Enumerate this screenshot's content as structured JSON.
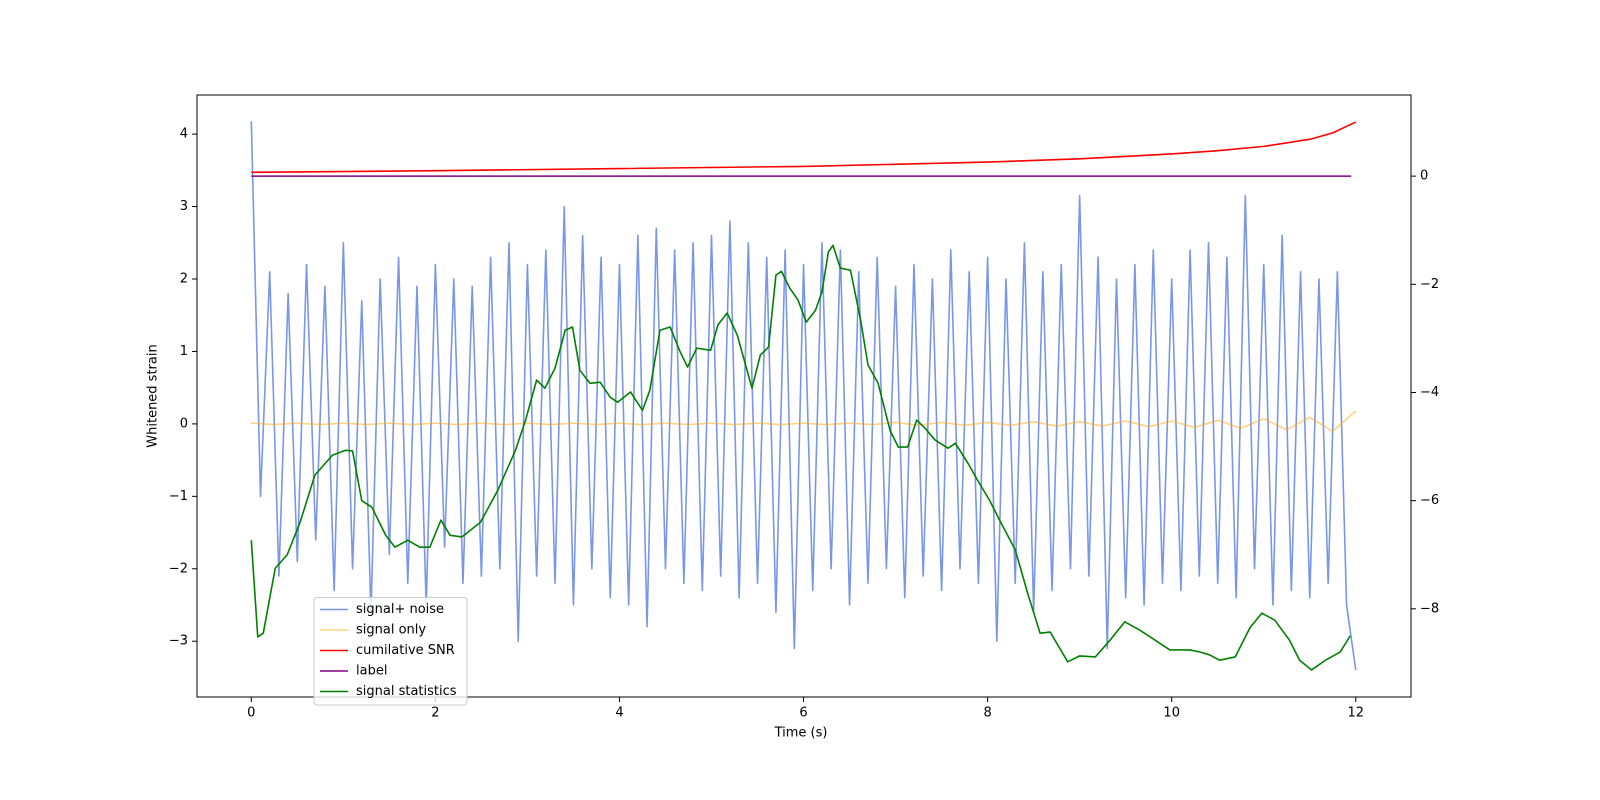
{
  "chart_data": {
    "type": "line",
    "xlabel": "Time (s)",
    "ylabel": "Whitened strain",
    "xlim": [
      -0.59,
      12.6
    ],
    "ylim": [
      -3.77,
      4.54
    ],
    "y2lim": [
      -9.63,
      1.5
    ],
    "xticks": [
      0,
      2,
      4,
      6,
      8,
      10,
      12
    ],
    "yticks": [
      {
        "value": -3,
        "label": "−3"
      },
      {
        "value": -2,
        "label": "−2"
      },
      {
        "value": -1,
        "label": "−1"
      },
      0,
      1,
      2,
      3,
      4
    ],
    "y2ticks": [
      {
        "value": -8,
        "label": "−8"
      },
      {
        "value": -6,
        "label": "−6"
      },
      {
        "value": -4,
        "label": "−4"
      },
      {
        "value": -2,
        "label": "−2"
      },
      0
    ],
    "legend": "lower left",
    "series": [
      {
        "name": "signal+ noise",
        "color": "#4169e1",
        "alpha": 0.7,
        "x": [
          0,
          0.1,
          0.2,
          0.3,
          0.4,
          0.5,
          0.6,
          0.7,
          0.8,
          0.9,
          1,
          1.1,
          1.2,
          1.3,
          1.4,
          1.5,
          1.6,
          1.7,
          1.8,
          1.9,
          2,
          2.1,
          2.2,
          2.3,
          2.4,
          2.5,
          2.6,
          2.7,
          2.8,
          2.9,
          3,
          3.1,
          3.2,
          3.3,
          3.4,
          3.5,
          3.6,
          3.7,
          3.8,
          3.9,
          4,
          4.1,
          4.2,
          4.3,
          4.4,
          4.5,
          4.6,
          4.7,
          4.8,
          4.9,
          5,
          5.1,
          5.2,
          5.3,
          5.4,
          5.5,
          5.6,
          5.7,
          5.8,
          5.9,
          6,
          6.1,
          6.2,
          6.3,
          6.4,
          6.5,
          6.6,
          6.7,
          6.8,
          6.9,
          7,
          7.1,
          7.2,
          7.3,
          7.4,
          7.5,
          7.6,
          7.7,
          7.8,
          7.9,
          8,
          8.1,
          8.2,
          8.3,
          8.4,
          8.5,
          8.6,
          8.7,
          8.8,
          8.9,
          9,
          9.1,
          9.2,
          9.3,
          9.4,
          9.5,
          9.6,
          9.7,
          9.8,
          9.9,
          10,
          10.1,
          10.2,
          10.3,
          10.4,
          10.5,
          10.6,
          10.7,
          10.8,
          10.9,
          11,
          11.1,
          11.2,
          11.3,
          11.4,
          11.5,
          11.6,
          11.7,
          11.8,
          11.9,
          12
        ],
        "values": [
          4.18,
          -1.0,
          2.1,
          -2.1,
          1.8,
          -1.9,
          2.2,
          -1.6,
          1.9,
          -2.3,
          2.5,
          -2.0,
          1.7,
          -2.6,
          2.0,
          -1.8,
          2.3,
          -2.2,
          1.9,
          -2.5,
          2.2,
          -1.7,
          2.0,
          -2.2,
          1.9,
          -2.1,
          2.3,
          -2.0,
          2.5,
          -3.0,
          2.2,
          -2.1,
          2.4,
          -2.2,
          3.0,
          -2.5,
          2.6,
          -2.0,
          2.3,
          -2.4,
          2.2,
          -2.5,
          2.6,
          -2.8,
          2.7,
          -2.0,
          2.4,
          -2.2,
          2.5,
          -2.3,
          2.6,
          -2.1,
          2.8,
          -2.4,
          2.5,
          -2.2,
          2.3,
          -2.6,
          2.4,
          -3.1,
          2.2,
          -2.3,
          2.5,
          -2.0,
          2.4,
          -2.5,
          2.1,
          -2.2,
          2.3,
          -2.0,
          1.9,
          -2.4,
          2.2,
          -2.1,
          2.0,
          -2.3,
          2.4,
          -2.0,
          2.1,
          -2.2,
          2.3,
          -3.0,
          2.0,
          -2.2,
          2.5,
          -2.6,
          2.1,
          -2.3,
          2.2,
          -2.0,
          3.15,
          -2.1,
          2.3,
          -3.1,
          2.0,
          -2.4,
          2.2,
          -2.5,
          2.4,
          -2.2,
          2.0,
          -2.3,
          2.4,
          -2.1,
          2.5,
          -2.2,
          2.3,
          -2.4,
          3.15,
          -2.0,
          2.2,
          -2.5,
          2.6,
          -2.3,
          2.1,
          -2.4,
          2.0,
          -2.2,
          2.1,
          -2.5,
          -3.4
        ]
      },
      {
        "name": "signal only",
        "color": "#ffa500",
        "alpha": 0.5,
        "x": [
          0,
          0.25,
          0.5,
          0.75,
          1,
          1.25,
          1.5,
          1.75,
          2,
          2.25,
          2.5,
          2.75,
          3,
          3.25,
          3.5,
          3.75,
          4,
          4.25,
          4.5,
          4.75,
          5,
          5.25,
          5.5,
          5.75,
          6,
          6.25,
          6.5,
          6.75,
          7,
          7.25,
          7.5,
          7.75,
          8,
          8.25,
          8.5,
          8.75,
          9,
          9.25,
          9.5,
          9.75,
          10,
          10.25,
          10.5,
          10.75,
          11,
          11.25,
          11.5,
          11.75,
          12
        ],
        "values": [
          0.01,
          -0.01,
          0.01,
          -0.01,
          0.01,
          -0.01,
          0.01,
          -0.01,
          0.01,
          -0.01,
          0.01,
          -0.01,
          0.01,
          -0.01,
          0.01,
          -0.01,
          0.01,
          -0.01,
          0.01,
          -0.01,
          0.01,
          -0.01,
          0.01,
          -0.01,
          0.01,
          -0.01,
          0.01,
          -0.01,
          0.02,
          -0.02,
          0.02,
          -0.02,
          0.02,
          -0.02,
          0.03,
          -0.03,
          0.03,
          -0.03,
          0.04,
          -0.04,
          0.04,
          -0.05,
          0.05,
          -0.06,
          0.07,
          -0.08,
          0.09,
          -0.1,
          0.18
        ]
      },
      {
        "name": "cumilative SNR",
        "color": "#ff0000",
        "axis": "y2",
        "x": [
          0,
          2,
          4,
          6,
          8,
          9,
          10,
          10.5,
          11,
          11.5,
          11.75,
          12
        ],
        "values": [
          0.07,
          0.1,
          0.14,
          0.18,
          0.26,
          0.32,
          0.41,
          0.47,
          0.55,
          0.68,
          0.8,
          1.0
        ]
      },
      {
        "name": "label",
        "color": "#800080",
        "axis": "y2",
        "x": [
          0,
          11.95
        ],
        "values": [
          0,
          0
        ]
      },
      {
        "name": "signal statistics",
        "color": "#008000",
        "axis": "y2",
        "x": [
          0,
          0.07,
          0.13,
          0.26,
          0.39,
          0.53,
          0.69,
          0.88,
          1.02,
          1.1,
          1.2,
          1.31,
          1.46,
          1.56,
          1.7,
          1.83,
          1.94,
          2.06,
          2.16,
          2.29,
          2.49,
          2.68,
          2.87,
          2.98,
          3.1,
          3.19,
          3.3,
          3.41,
          3.49,
          3.57,
          3.68,
          3.79,
          3.9,
          3.98,
          4.12,
          4.25,
          4.33,
          4.44,
          4.55,
          4.66,
          4.74,
          4.84,
          4.99,
          5.07,
          5.17,
          5.28,
          5.44,
          5.53,
          5.62,
          5.7,
          5.76,
          5.85,
          5.94,
          6.03,
          6.13,
          6.2,
          6.27,
          6.32,
          6.4,
          6.51,
          6.62,
          6.7,
          6.81,
          6.94,
          7.03,
          7.13,
          7.23,
          7.32,
          7.43,
          7.57,
          7.65,
          7.78,
          7.89,
          8.02,
          8.13,
          8.3,
          8.44,
          8.57,
          8.68,
          8.87,
          9.0,
          9.17,
          9.33,
          9.49,
          9.65,
          9.82,
          9.98,
          10.2,
          10.31,
          10.41,
          10.52,
          10.69,
          10.85,
          10.98,
          11.12,
          11.28,
          11.39,
          11.52,
          11.67,
          11.83,
          11.94
        ],
        "values": [
          -6.73,
          -8.52,
          -8.45,
          -7.25,
          -7.0,
          -6.4,
          -5.53,
          -5.16,
          -5.07,
          -5.08,
          -6.0,
          -6.12,
          -6.64,
          -6.86,
          -6.73,
          -6.86,
          -6.86,
          -6.36,
          -6.64,
          -6.67,
          -6.4,
          -5.8,
          -5.07,
          -4.51,
          -3.77,
          -3.92,
          -3.55,
          -2.85,
          -2.79,
          -3.59,
          -3.83,
          -3.81,
          -4.09,
          -4.18,
          -3.99,
          -4.33,
          -3.96,
          -2.85,
          -2.79,
          -3.25,
          -3.53,
          -3.18,
          -3.22,
          -2.75,
          -2.53,
          -2.94,
          -3.92,
          -3.31,
          -3.16,
          -1.83,
          -1.76,
          -2.07,
          -2.29,
          -2.7,
          -2.48,
          -2.14,
          -1.4,
          -1.28,
          -1.7,
          -1.74,
          -2.66,
          -3.49,
          -3.83,
          -4.7,
          -5.01,
          -5.01,
          -4.51,
          -4.66,
          -4.88,
          -5.03,
          -4.94,
          -5.29,
          -5.62,
          -5.99,
          -6.36,
          -6.91,
          -7.74,
          -8.45,
          -8.43,
          -8.98,
          -8.87,
          -8.89,
          -8.58,
          -8.24,
          -8.39,
          -8.58,
          -8.76,
          -8.76,
          -8.8,
          -8.85,
          -8.95,
          -8.89,
          -8.35,
          -8.08,
          -8.21,
          -8.58,
          -8.95,
          -9.13,
          -8.95,
          -8.8,
          -8.5
        ]
      }
    ]
  }
}
